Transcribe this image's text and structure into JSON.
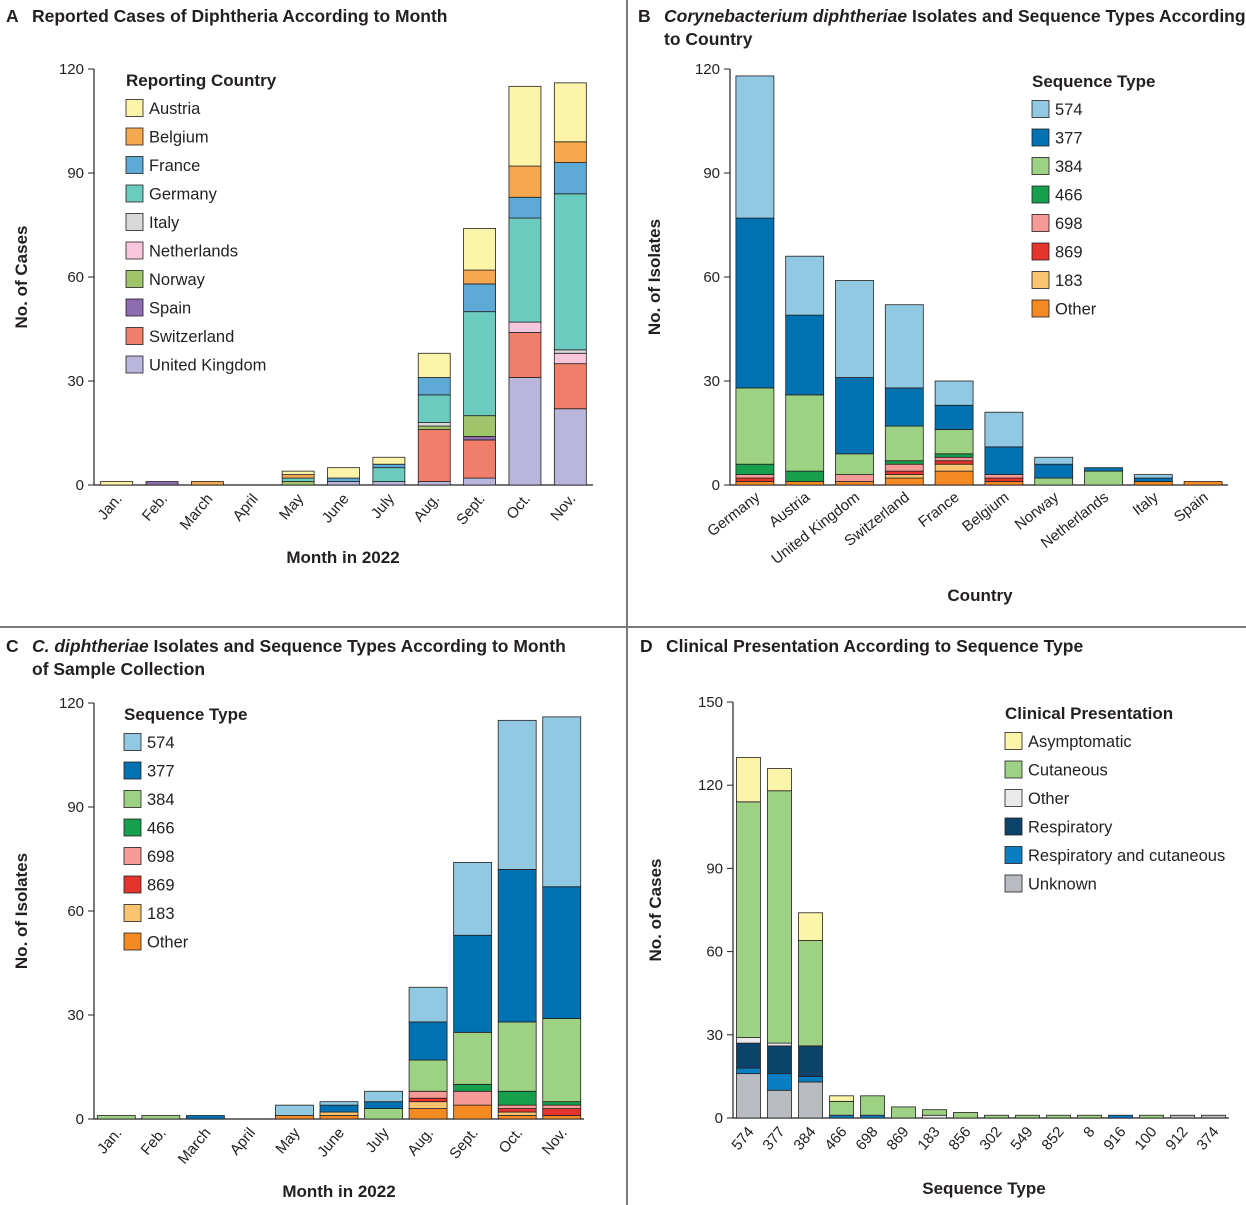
{
  "colors": {
    "countries": {
      "Austria": "#fbf4a9",
      "Belgium": "#f6a84f",
      "France": "#5eaad6",
      "Germany": "#6ccbbf",
      "Italy": "#d9d9d9",
      "Netherlands": "#f8c7dd",
      "Norway": "#9fc46a",
      "Spain": "#8f6bb0",
      "Switzerland": "#f07e6a",
      "United Kingdom": "#b9b6dc"
    },
    "sequence_types": {
      "574": "#92c9e2",
      "377": "#0072b2",
      "384": "#9dd183",
      "466": "#16a04e",
      "698": "#f59a97",
      "869": "#e5342c",
      "183": "#fbc470",
      "Other": "#f58a23"
    },
    "clinical": {
      "Asymptomatic": "#fbf4a9",
      "Cutaneous": "#9dd183",
      "Other": "#eaeaea",
      "Respiratory": "#0c436b",
      "Respiratory and cutaneous": "#0a7ec2",
      "Unknown": "#b8bcc0"
    }
  },
  "panels": {
    "A": {
      "letter": "A",
      "title_line1": "Reported Cases of Diphtheria According to Month",
      "title_line2": "",
      "chart_data": {
        "type": "bar",
        "stacked": true,
        "xlabel": "Month in 2022",
        "ylabel": "No. of Cases",
        "ylim": [
          0,
          120
        ],
        "yticks": [
          0,
          30,
          60,
          90,
          120
        ],
        "legend_title": "Reporting Country",
        "categories": [
          "Jan.",
          "Feb.",
          "March",
          "April",
          "May",
          "June",
          "July",
          "Aug.",
          "Sept.",
          "Oct.",
          "Nov."
        ],
        "series": [
          {
            "name": "United Kingdom",
            "values": [
              0,
              0,
              0,
              0,
              0,
              1,
              1,
              1,
              2,
              31,
              22
            ]
          },
          {
            "name": "Switzerland",
            "values": [
              0,
              0,
              0,
              0,
              0,
              0,
              0,
              15,
              11,
              13,
              13
            ]
          },
          {
            "name": "Spain",
            "values": [
              0,
              1,
              0,
              0,
              0,
              0,
              0,
              0,
              1,
              0,
              0
            ]
          },
          {
            "name": "Norway",
            "values": [
              0,
              0,
              0,
              0,
              1,
              0,
              0,
              1,
              6,
              0,
              0
            ]
          },
          {
            "name": "Netherlands",
            "values": [
              0,
              0,
              0,
              0,
              0,
              0,
              0,
              0,
              0,
              3,
              3
            ]
          },
          {
            "name": "Italy",
            "values": [
              0,
              0,
              0,
              0,
              0,
              0,
              0,
              1,
              0,
              0,
              1
            ]
          },
          {
            "name": "Germany",
            "values": [
              0,
              0,
              0,
              0,
              1,
              0,
              4,
              8,
              30,
              30,
              45
            ]
          },
          {
            "name": "France",
            "values": [
              0,
              0,
              0,
              0,
              0,
              1,
              1,
              5,
              8,
              6,
              9
            ]
          },
          {
            "name": "Belgium",
            "values": [
              0,
              0,
              1,
              0,
              1,
              0,
              0,
              0,
              4,
              9,
              6
            ]
          },
          {
            "name": "Austria",
            "values": [
              1,
              0,
              0,
              0,
              1,
              3,
              2,
              7,
              12,
              23,
              17
            ]
          }
        ],
        "legend_order": [
          "Austria",
          "Belgium",
          "France",
          "Germany",
          "Italy",
          "Netherlands",
          "Norway",
          "Spain",
          "Switzerland",
          "United Kingdom"
        ]
      }
    },
    "B": {
      "letter": "B",
      "title_line1_italic": "Corynebacterium diphtheriae",
      "title_line1_rest": " Isolates and Sequence Types According",
      "title_line2": "to Country",
      "chart_data": {
        "type": "bar",
        "stacked": true,
        "xlabel": "Country",
        "ylabel": "No. of Isolates",
        "ylim": [
          0,
          120
        ],
        "yticks": [
          0,
          30,
          60,
          90,
          120
        ],
        "legend_title": "Sequence Type",
        "categories": [
          "Germany",
          "Austria",
          "United Kingdom",
          "Switzerland",
          "France",
          "Belgium",
          "Norway",
          "Netherlands",
          "Italy",
          "Spain"
        ],
        "series": [
          {
            "name": "Other",
            "values": [
              1,
              1,
              1,
              2,
              4,
              1,
              0,
              0,
              1,
              1
            ]
          },
          {
            "name": "183",
            "values": [
              0,
              0,
              0,
              1,
              2,
              0,
              0,
              0,
              0,
              0
            ]
          },
          {
            "name": "869",
            "values": [
              1,
              0,
              0,
              1,
              1,
              1,
              0,
              0,
              0,
              0
            ]
          },
          {
            "name": "698",
            "values": [
              1,
              0,
              2,
              2,
              1,
              1,
              0,
              0,
              0,
              0
            ]
          },
          {
            "name": "466",
            "values": [
              3,
              3,
              0,
              1,
              1,
              0,
              0,
              0,
              0,
              0
            ]
          },
          {
            "name": "384",
            "values": [
              22,
              22,
              6,
              10,
              7,
              0,
              2,
              4,
              0,
              0
            ]
          },
          {
            "name": "377",
            "values": [
              49,
              23,
              22,
              11,
              7,
              8,
              4,
              1,
              1,
              0
            ]
          },
          {
            "name": "574",
            "values": [
              41,
              17,
              28,
              24,
              7,
              10,
              2,
              0,
              1,
              0
            ]
          }
        ],
        "legend_order": [
          "574",
          "377",
          "384",
          "466",
          "698",
          "869",
          "183",
          "Other"
        ]
      }
    },
    "C": {
      "letter": "C",
      "title_line1_italic": "C. diphtheriae",
      "title_line1_rest": " Isolates and Sequence Types According to Month",
      "title_line2": "of Sample Collection",
      "chart_data": {
        "type": "bar",
        "stacked": true,
        "xlabel": "Month in 2022",
        "ylabel": "No. of Isolates",
        "ylim": [
          0,
          120
        ],
        "yticks": [
          0,
          30,
          60,
          90,
          120
        ],
        "legend_title": "Sequence Type",
        "categories": [
          "Jan.",
          "Feb.",
          "March",
          "April",
          "May",
          "June",
          "July",
          "Aug.",
          "Sept.",
          "Oct.",
          "Nov."
        ],
        "series": [
          {
            "name": "Other",
            "values": [
              0,
              0,
              0,
              0,
              1,
              1,
              0,
              3,
              4,
              1,
              1
            ]
          },
          {
            "name": "183",
            "values": [
              0,
              0,
              0,
              0,
              0,
              1,
              0,
              2,
              0,
              1,
              0
            ]
          },
          {
            "name": "869",
            "values": [
              0,
              0,
              0,
              0,
              0,
              0,
              0,
              1,
              0,
              1,
              2
            ]
          },
          {
            "name": "698",
            "values": [
              0,
              0,
              0,
              0,
              0,
              0,
              0,
              2,
              4,
              1,
              1
            ]
          },
          {
            "name": "466",
            "values": [
              0,
              0,
              0,
              0,
              0,
              0,
              0,
              0,
              2,
              4,
              1
            ]
          },
          {
            "name": "384",
            "values": [
              1,
              1,
              0,
              0,
              0,
              0,
              3,
              9,
              15,
              20,
              24
            ]
          },
          {
            "name": "377",
            "values": [
              0,
              0,
              1,
              0,
              0,
              2,
              2,
              11,
              28,
              44,
              38
            ]
          },
          {
            "name": "574",
            "values": [
              0,
              0,
              0,
              0,
              3,
              1,
              3,
              10,
              21,
              43,
              49
            ]
          }
        ],
        "legend_order": [
          "574",
          "377",
          "384",
          "466",
          "698",
          "869",
          "183",
          "Other"
        ]
      }
    },
    "D": {
      "letter": "D",
      "title_line1": "Clinical Presentation According to Sequence Type",
      "title_line2": "",
      "chart_data": {
        "type": "bar",
        "stacked": true,
        "xlabel": "Sequence Type",
        "ylabel": "No. of Cases",
        "ylim": [
          0,
          150
        ],
        "yticks": [
          0,
          30,
          60,
          90,
          120,
          150
        ],
        "legend_title": "Clinical Presentation",
        "categories": [
          "574",
          "377",
          "384",
          "466",
          "698",
          "869",
          "183",
          "856",
          "302",
          "549",
          "852",
          "8",
          "916",
          "100",
          "912",
          "374"
        ],
        "series": [
          {
            "name": "Unknown",
            "values": [
              16,
              10,
              13,
              0,
              0,
              0,
              0,
              0,
              0,
              0,
              0,
              0,
              0,
              0,
              1,
              1
            ]
          },
          {
            "name": "Respiratory and cutaneous",
            "values": [
              2,
              6,
              2,
              1,
              1,
              0,
              0,
              0,
              0,
              0,
              0,
              0,
              1,
              0,
              0,
              0
            ]
          },
          {
            "name": "Respiratory",
            "values": [
              9,
              10,
              11,
              0,
              0,
              0,
              0,
              0,
              0,
              0,
              0,
              0,
              0,
              0,
              0,
              0
            ]
          },
          {
            "name": "Other",
            "values": [
              2,
              1,
              0,
              0,
              0,
              0,
              1,
              0,
              0,
              0,
              0,
              0,
              0,
              0,
              0,
              0
            ]
          },
          {
            "name": "Cutaneous",
            "values": [
              85,
              91,
              38,
              5,
              7,
              4,
              2,
              2,
              1,
              1,
              1,
              1,
              0,
              1,
              0,
              0
            ]
          },
          {
            "name": "Asymptomatic",
            "values": [
              16,
              8,
              10,
              2,
              0,
              0,
              0,
              0,
              0,
              0,
              0,
              0,
              0,
              0,
              0,
              0
            ]
          }
        ],
        "legend_order": [
          "Asymptomatic",
          "Cutaneous",
          "Other",
          "Respiratory",
          "Respiratory and cutaneous",
          "Unknown"
        ]
      }
    }
  }
}
